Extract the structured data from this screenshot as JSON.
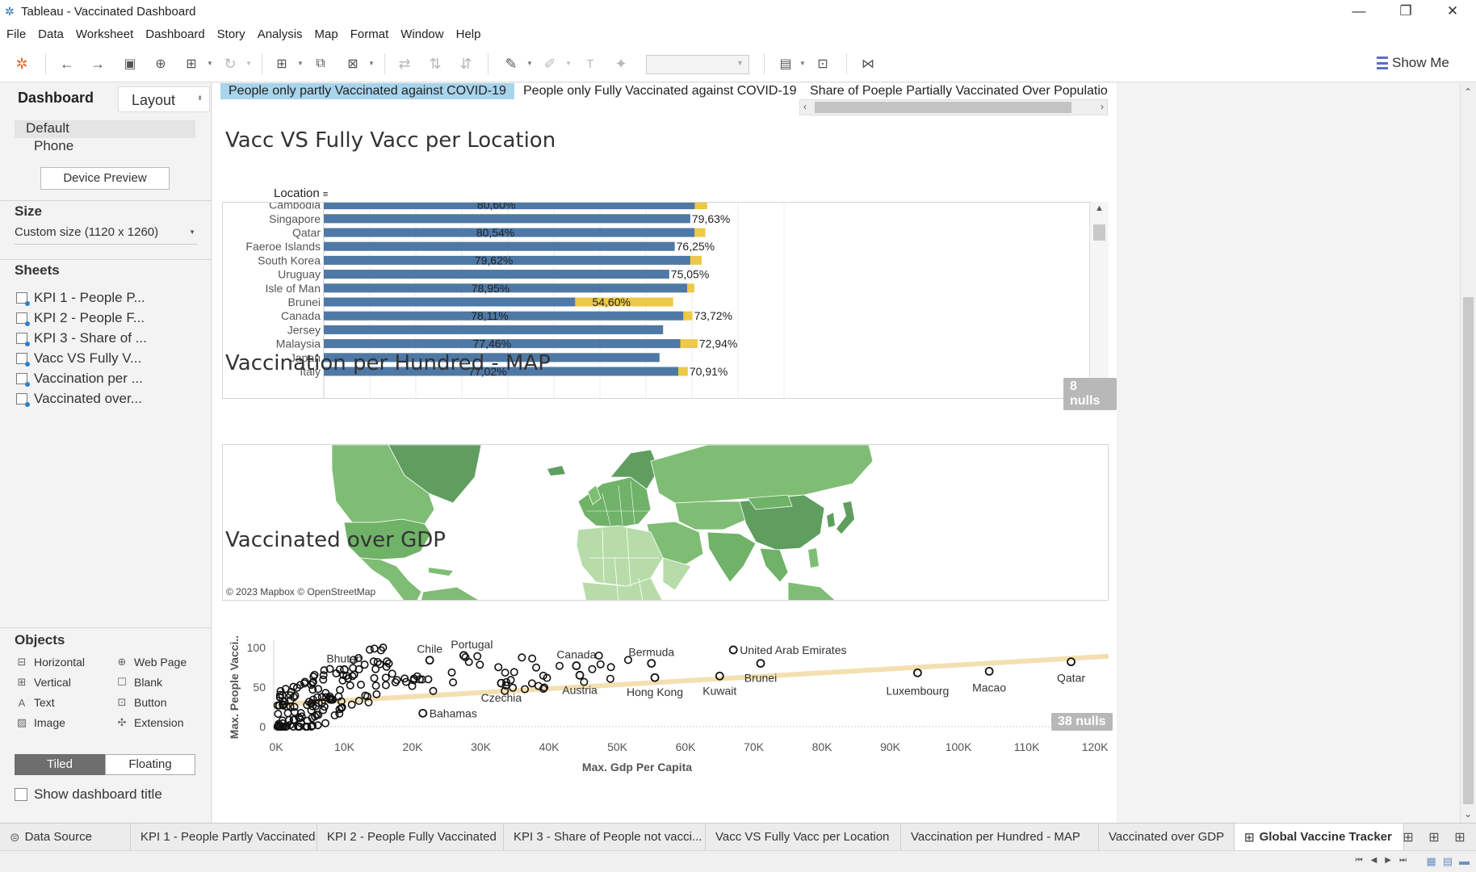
{
  "window": {
    "title": "Tableau - Vaccinated Dashboard",
    "controls": [
      "—",
      "❐",
      "✕"
    ]
  },
  "menu": [
    "File",
    "Data",
    "Worksheet",
    "Dashboard",
    "Story",
    "Analysis",
    "Map",
    "Format",
    "Window",
    "Help"
  ],
  "toolbar": {
    "show_me": "Show Me"
  },
  "left_pane": {
    "tab_dashboard": "Dashboard",
    "tab_layout": "Layout",
    "devices": [
      "Default",
      "Phone"
    ],
    "device_preview": "Device Preview",
    "size_heading": "Size",
    "size_value": "Custom size (1120 x 1260)",
    "sheets_heading": "Sheets",
    "sheets": [
      "KPI 1 - People P...",
      "KPI 2 - People F...",
      "KPI 3 - Share of ...",
      "Vacc VS Fully V...",
      "Vaccination per ...",
      "Vaccinated over..."
    ],
    "objects_heading": "Objects",
    "objects": [
      {
        "label": "Horizontal",
        "icon": "horizontal-container-icon"
      },
      {
        "label": "Web Page",
        "icon": "globe-icon"
      },
      {
        "label": "Vertical",
        "icon": "vertical-container-icon"
      },
      {
        "label": "Blank",
        "icon": "blank-icon"
      },
      {
        "label": "Text",
        "icon": "text-icon"
      },
      {
        "label": "Button",
        "icon": "button-icon"
      },
      {
        "label": "Image",
        "icon": "image-icon"
      },
      {
        "label": "Extension",
        "icon": "puzzle-icon"
      }
    ],
    "tiled": "Tiled",
    "floating": "Floating",
    "show_title": "Show dashboard title"
  },
  "kpis": [
    "People only partly Vaccinated against COVID-19",
    "People only Fully Vaccinated against COVID-19",
    "Share of Poeple Partially Vaccinated Over Populatio"
  ],
  "bar_section": {
    "title": "Vacc VS Fully Vacc per Location",
    "column_header": "Location",
    "nulls": "8 nulls"
  },
  "map_section": {
    "title": "Vaccination per Hundred - MAP",
    "attribution": "© 2023 Mapbox © OpenStreetMap"
  },
  "scatter_section": {
    "title": "Vaccinated over GDP",
    "nulls": "38 nulls"
  },
  "colors": {
    "bar_blue": "#4e79a7",
    "bar_yellow": "#edc948",
    "map_dark": "#5f9e5f",
    "map_mid": "#7fbd75",
    "map_light": "#b7dca9",
    "trend": "#f3dfb0"
  },
  "chart_data": [
    {
      "type": "bar",
      "title": "Vacc VS Fully Vacc per Location",
      "xlabel": "",
      "ylabel": "Location",
      "categories": [
        "Cambodia",
        "Singapore",
        "Qatar",
        "Faeroe Islands",
        "South Korea",
        "Uruguay",
        "Isle of Man",
        "Brunei",
        "Canada",
        "Jersey",
        "Malaysia",
        "Japan",
        "Italy"
      ],
      "series": [
        {
          "values": [
            80.6,
            79.63,
            80.54,
            76.25,
            79.62,
            75.05,
            78.95,
            54.6,
            78.11,
            73.72,
            77.46,
            72.94,
            77.02
          ]
        },
        {
          "values": [
            83.3,
            79.63,
            82.9,
            76.25,
            82.1,
            75.05,
            80.5,
            75.9,
            80.1,
            73.72,
            81.2,
            72.94,
            79.1
          ]
        }
      ],
      "labels": [
        {
          "row": 0,
          "text": "80,60%",
          "pos": "mid"
        },
        {
          "row": 1,
          "text": "79,63%",
          "pos": "end"
        },
        {
          "row": 2,
          "text": "80,54%",
          "pos": "mid"
        },
        {
          "row": 3,
          "text": "76,25%",
          "pos": "end"
        },
        {
          "row": 4,
          "text": "79,62%",
          "pos": "mid"
        },
        {
          "row": 5,
          "text": "75,05%",
          "pos": "end"
        },
        {
          "row": 6,
          "text": "78,95%",
          "pos": "mid"
        },
        {
          "row": 7,
          "text": "54,60%",
          "pos": "yellow"
        },
        {
          "row": 8,
          "text": "78,11%",
          "pos": "mid"
        },
        {
          "row": 8,
          "text": "73,72%",
          "pos": "end"
        },
        {
          "row": 10,
          "text": "77,46%",
          "pos": "mid"
        },
        {
          "row": 10,
          "text": "72,94%",
          "pos": "end"
        },
        {
          "row": 12,
          "text": "77,02%",
          "pos": "mid"
        },
        {
          "row": 12,
          "text": "70,91%",
          "pos": "end"
        }
      ]
    },
    {
      "type": "scatter",
      "title": "Vaccinated over GDP",
      "xlabel": "Max. Gdp Per Capita",
      "ylabel": "Max. People Vacci..",
      "xlim": [
        0,
        122000
      ],
      "ylim": [
        0,
        100
      ],
      "x_ticks": [
        "0K",
        "10K",
        "20K",
        "30K",
        "40K",
        "50K",
        "60K",
        "70K",
        "80K",
        "90K",
        "100K",
        "110K",
        "120K"
      ],
      "y_ticks": [
        "0",
        "50",
        "100"
      ],
      "labeled_points": [
        {
          "label": "Bhutan",
          "x": 10000,
          "y": 72
        },
        {
          "label": "Chile",
          "x": 22500,
          "y": 84
        },
        {
          "label": "Portugal",
          "x": 27500,
          "y": 90
        },
        {
          "label": "Canada",
          "x": 44000,
          "y": 77
        },
        {
          "label": "Bermuda",
          "x": 55000,
          "y": 80
        },
        {
          "label": "United Arab Emirates",
          "x": 67000,
          "y": 97
        },
        {
          "label": "Bahamas",
          "x": 21500,
          "y": 17
        },
        {
          "label": "Czechia",
          "x": 33000,
          "y": 55
        },
        {
          "label": "Austria",
          "x": 44500,
          "y": 65
        },
        {
          "label": "Hong Kong",
          "x": 55500,
          "y": 62
        },
        {
          "label": "Kuwait",
          "x": 65000,
          "y": 64
        },
        {
          "label": "Brunei",
          "x": 71000,
          "y": 80
        },
        {
          "label": "Luxembourg",
          "x": 94000,
          "y": 68
        },
        {
          "label": "Macao",
          "x": 104500,
          "y": 70
        },
        {
          "label": "Qatar",
          "x": 116500,
          "y": 82
        }
      ],
      "trend": {
        "x": [
          0,
          122000
        ],
        "y": [
          28,
          89
        ]
      }
    }
  ]
}
